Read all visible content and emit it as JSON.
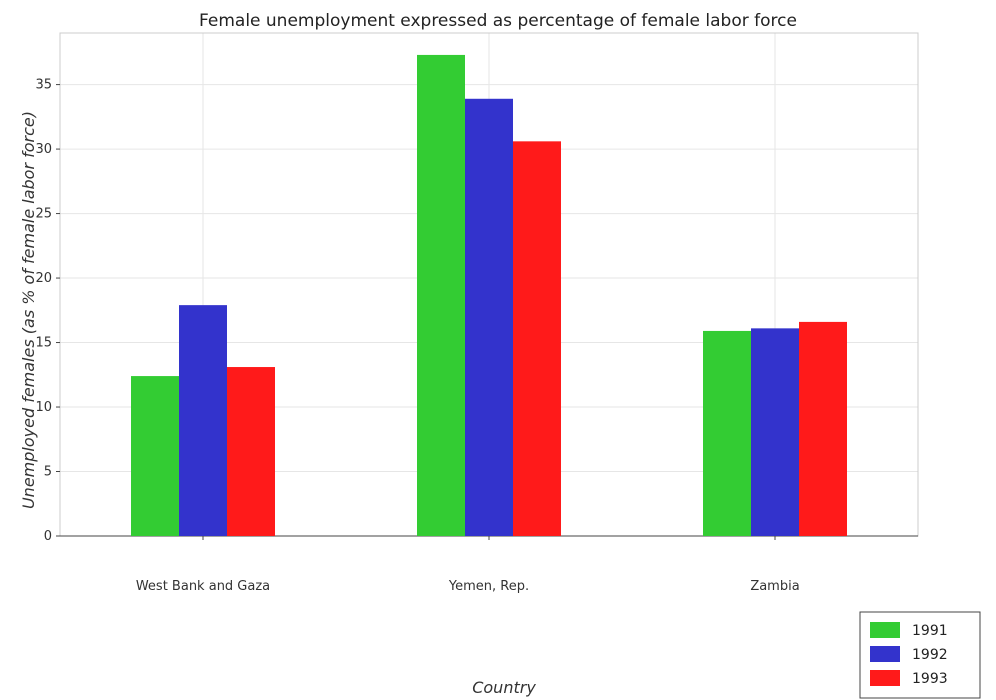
{
  "chart_data": {
    "type": "bar",
    "title": "Female unemployment expressed as percentage of female labor force",
    "xlabel": "Country",
    "ylabel": "Unemployed females (as % of female labor force)",
    "categories": [
      "West Bank and Gaza",
      "Yemen, Rep.",
      "Zambia"
    ],
    "series": [
      {
        "name": "1991",
        "color": "#33cc33",
        "values": [
          12.4,
          37.3,
          15.9
        ]
      },
      {
        "name": "1992",
        "color": "#3333cc",
        "values": [
          17.9,
          33.9,
          16.1
        ]
      },
      {
        "name": "1993",
        "color": "#ff1a1a",
        "values": [
          13.1,
          30.6,
          16.6
        ]
      }
    ],
    "ylim": [
      0,
      39
    ],
    "yticks": [
      0,
      5,
      10,
      15,
      20,
      25,
      30,
      35
    ],
    "grid": true,
    "legend_position": "bottom-right"
  }
}
